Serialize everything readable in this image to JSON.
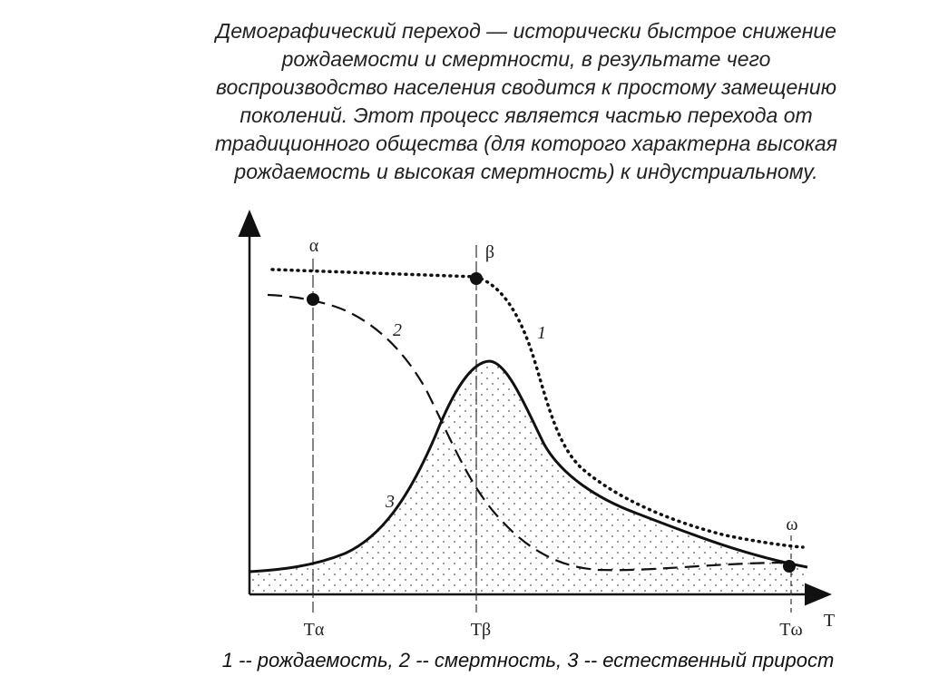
{
  "text": {
    "lines": [
      "Демографический переход — исторически быстрое снижение",
      "рождаемости и смертности, в результате чего",
      "воспроизводство населения сводится к простому замещению",
      "поколений. Этот процесс является частью перехода от",
      "традиционного общества (для которого характерна высокая",
      "рождаемость и высокая смертность) к индустриальному."
    ]
  },
  "diagram": {
    "point_labels": [
      "α",
      "β",
      "ω"
    ],
    "curve_labels": [
      "1",
      "2",
      "3"
    ],
    "axis_ticks": [
      "Tα",
      "Tβ",
      "Tω"
    ],
    "axis_label": "T"
  },
  "caption": "1 -- рождаемость, 2 -- смертность, 3 -- естественный прирост"
}
